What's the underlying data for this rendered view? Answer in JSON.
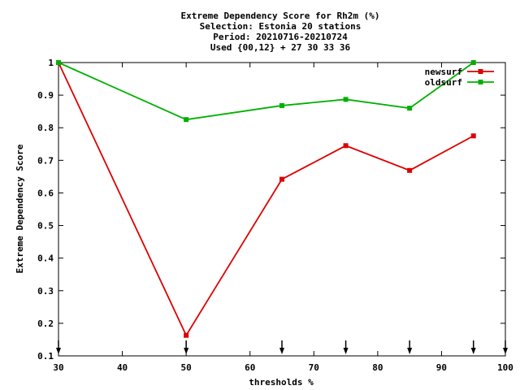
{
  "chart_data": {
    "type": "line",
    "title_lines": [
      "Extreme Dependency Score  for Rh2m (%)",
      "Selection: Estonia     20 stations",
      "Period: 20210716-20210724",
      "Used {00,12} + 27 30 33 36"
    ],
    "xlabel": "thresholds %",
    "ylabel": "Extreme Dependency Score",
    "xlim": [
      30,
      100
    ],
    "ylim": [
      0.1,
      1.0
    ],
    "xticks": [
      30,
      40,
      50,
      60,
      70,
      80,
      90,
      100
    ],
    "yticks": [
      0.1,
      0.2,
      0.3,
      0.4,
      0.5,
      0.6,
      0.7,
      0.8,
      0.9,
      1.0
    ],
    "ytick_labels": [
      "0.1",
      "0.2",
      "0.3",
      "0.4",
      "0.5",
      "0.6",
      "0.7",
      "0.8",
      "0.9",
      "1"
    ],
    "threshold_markers": [
      30,
      50,
      65,
      75,
      85,
      95,
      100
    ],
    "legend_position": "top-right",
    "grid": false,
    "series": [
      {
        "name": "newsurf",
        "color": "#dd0000",
        "points": [
          [
            30,
            1.0
          ],
          [
            50,
            0.163
          ],
          [
            65,
            0.642
          ],
          [
            75,
            0.745
          ],
          [
            85,
            0.669
          ],
          [
            95,
            0.775
          ]
        ]
      },
      {
        "name": "oldsurf",
        "color": "#00b000",
        "points": [
          [
            30,
            1.0
          ],
          [
            50,
            0.825
          ],
          [
            65,
            0.868
          ],
          [
            75,
            0.887
          ],
          [
            85,
            0.86
          ],
          [
            95,
            1.0
          ]
        ]
      }
    ]
  }
}
